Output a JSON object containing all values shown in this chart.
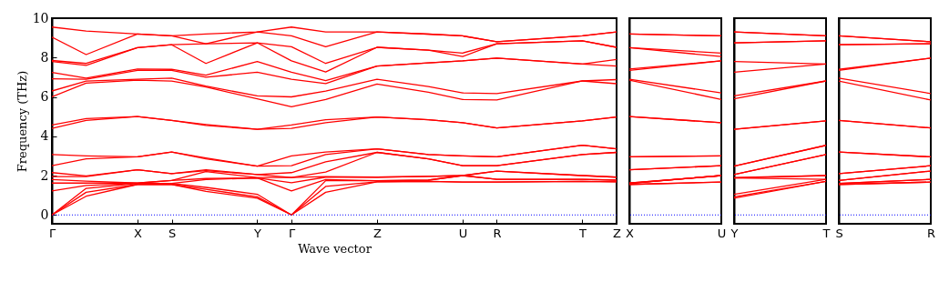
{
  "chart_data": [
    {
      "type": "line",
      "xlabel": "Wave vector",
      "ylabel": "Frequency (THz)",
      "categories": [
        "Γ",
        null,
        null,
        null,
        null,
        "X",
        null,
        "S",
        null,
        null,
        null,
        null,
        "Y",
        null,
        "Γ",
        null,
        null,
        null,
        null,
        "Z",
        null,
        null,
        null,
        null,
        "U",
        null,
        "R",
        null,
        null,
        null,
        null,
        "T",
        null,
        "Z"
      ],
      "ylim": [
        -0.45,
        10
      ],
      "yticks": [
        0,
        2,
        4,
        6,
        8,
        10
      ],
      "ref_lines": [
        {
          "axis": "y",
          "value": 0,
          "color": "#0000ff",
          "line_style": "dotted"
        }
      ],
      "series": [
        {
          "color": "#ff0000",
          "values": [
            0,
            null,
            0.95,
            null,
            null,
            1.55,
            null,
            1.55,
            null,
            1.2,
            null,
            null,
            0.85,
            null,
            0,
            null,
            1.15,
            null,
            null,
            1.68,
            null,
            null,
            1.71,
            null,
            1.67,
            null,
            1.67,
            null,
            null,
            null,
            null,
            1.71,
            null,
            1.68
          ]
        },
        {
          "color": "#ff0000",
          "values": [
            0,
            null,
            1.15,
            null,
            null,
            1.55,
            null,
            1.55,
            null,
            1.3,
            null,
            null,
            0.92,
            null,
            0,
            null,
            1.45,
            null,
            null,
            1.68,
            null,
            null,
            1.71,
            null,
            1.67,
            null,
            1.67,
            null,
            null,
            null,
            null,
            1.71,
            null,
            1.68
          ]
        },
        {
          "color": "#ff0000",
          "values": [
            0,
            null,
            1.35,
            null,
            null,
            1.6,
            null,
            1.6,
            null,
            1.4,
            null,
            null,
            1.05,
            null,
            0,
            null,
            1.74,
            null,
            null,
            1.74,
            null,
            null,
            1.77,
            null,
            2.0,
            null,
            1.81,
            null,
            null,
            null,
            null,
            1.81,
            null,
            1.77
          ]
        },
        {
          "color": "#ff0000",
          "values": [
            1.22,
            null,
            1.5,
            null,
            null,
            1.6,
            null,
            1.6,
            null,
            1.8,
            null,
            null,
            1.88,
            null,
            1.22,
            null,
            1.8,
            null,
            null,
            1.74,
            null,
            null,
            1.77,
            null,
            2.0,
            null,
            1.81,
            null,
            null,
            null,
            null,
            1.81,
            null,
            1.77
          ]
        },
        {
          "color": "#ff0000",
          "values": [
            1.62,
            null,
            1.62,
            null,
            null,
            1.62,
            null,
            1.75,
            null,
            1.85,
            null,
            null,
            1.88,
            null,
            1.64,
            null,
            1.92,
            null,
            null,
            1.92,
            null,
            null,
            1.96,
            null,
            2.0,
            null,
            2.23,
            null,
            null,
            null,
            null,
            2.0,
            null,
            1.92
          ]
        },
        {
          "color": "#ff0000",
          "values": [
            1.8,
            null,
            1.72,
            null,
            null,
            1.62,
            null,
            1.75,
            null,
            2.2,
            null,
            null,
            1.9,
            null,
            1.9,
            null,
            1.95,
            null,
            null,
            1.92,
            null,
            null,
            1.96,
            null,
            2.0,
            null,
            2.23,
            null,
            null,
            null,
            null,
            2.0,
            null,
            1.92
          ]
        },
        {
          "color": "#ff0000",
          "values": [
            1.95,
            null,
            1.95,
            null,
            null,
            2.3,
            null,
            2.1,
            null,
            2.25,
            null,
            null,
            2.05,
            null,
            1.9,
            null,
            2.18,
            null,
            null,
            3.18,
            null,
            null,
            2.85,
            null,
            2.5,
            null,
            2.5,
            null,
            null,
            null,
            null,
            3.07,
            null,
            3.18
          ]
        },
        {
          "color": "#ff0000",
          "values": [
            2.15,
            null,
            1.98,
            null,
            null,
            2.3,
            null,
            2.1,
            null,
            2.3,
            null,
            null,
            2.05,
            null,
            2.15,
            null,
            2.7,
            null,
            null,
            3.18,
            null,
            null,
            2.85,
            null,
            2.5,
            null,
            2.5,
            null,
            null,
            null,
            null,
            3.07,
            null,
            3.18
          ]
        },
        {
          "color": "#ff0000",
          "values": [
            2.5,
            null,
            2.85,
            null,
            null,
            2.95,
            null,
            3.2,
            null,
            2.85,
            null,
            null,
            2.48,
            null,
            2.5,
            null,
            3.07,
            null,
            null,
            3.36,
            null,
            null,
            3.07,
            null,
            3.0,
            null,
            2.95,
            null,
            null,
            null,
            null,
            3.54,
            null,
            3.36
          ]
        },
        {
          "color": "#ff0000",
          "values": [
            3.07,
            null,
            3.0,
            null,
            null,
            2.95,
            null,
            3.2,
            null,
            2.9,
            null,
            null,
            2.48,
            null,
            3.0,
            null,
            3.2,
            null,
            null,
            3.36,
            null,
            null,
            3.07,
            null,
            3.0,
            null,
            2.95,
            null,
            null,
            null,
            null,
            3.54,
            null,
            3.36
          ]
        },
        {
          "color": "#ff0000",
          "values": [
            4.4,
            null,
            4.8,
            null,
            null,
            5.0,
            null,
            4.8,
            null,
            4.55,
            null,
            null,
            4.35,
            null,
            4.4,
            null,
            4.69,
            null,
            null,
            4.98,
            null,
            null,
            4.84,
            null,
            4.69,
            null,
            4.42,
            null,
            null,
            null,
            null,
            4.78,
            null,
            4.98
          ]
        },
        {
          "color": "#ff0000",
          "values": [
            4.57,
            null,
            4.9,
            null,
            null,
            5.0,
            null,
            4.8,
            null,
            4.6,
            null,
            null,
            4.35,
            null,
            4.57,
            null,
            4.84,
            null,
            null,
            4.98,
            null,
            null,
            4.84,
            null,
            4.69,
            null,
            4.42,
            null,
            null,
            null,
            null,
            4.78,
            null,
            4.98
          ]
        },
        {
          "color": "#ff0000",
          "values": [
            6.0,
            null,
            6.7,
            null,
            null,
            6.85,
            null,
            6.8,
            null,
            6.5,
            null,
            null,
            5.9,
            null,
            5.5,
            null,
            5.87,
            null,
            null,
            6.65,
            null,
            null,
            6.24,
            null,
            5.87,
            null,
            5.84,
            null,
            null,
            null,
            null,
            6.81,
            null,
            6.67
          ]
        },
        {
          "color": "#ff0000",
          "values": [
            6.3,
            null,
            6.8,
            null,
            null,
            6.9,
            null,
            6.95,
            null,
            6.55,
            null,
            null,
            6.05,
            null,
            6.0,
            null,
            6.3,
            null,
            null,
            6.9,
            null,
            null,
            6.53,
            null,
            6.2,
            null,
            6.17,
            null,
            null,
            null,
            null,
            6.81,
            null,
            6.88
          ]
        },
        {
          "color": "#ff0000",
          "values": [
            6.92,
            null,
            6.9,
            null,
            null,
            7.35,
            null,
            7.35,
            null,
            7.0,
            null,
            null,
            7.25,
            null,
            6.9,
            null,
            6.68,
            null,
            null,
            7.57,
            null,
            null,
            7.73,
            null,
            7.83,
            null,
            7.97,
            null,
            null,
            null,
            null,
            7.67,
            null,
            7.57
          ]
        },
        {
          "color": "#ff0000",
          "values": [
            7.24,
            null,
            6.95,
            null,
            null,
            7.42,
            null,
            7.4,
            null,
            7.1,
            null,
            null,
            7.8,
            null,
            7.25,
            null,
            6.83,
            null,
            null,
            7.57,
            null,
            null,
            7.73,
            null,
            7.83,
            null,
            7.97,
            null,
            null,
            null,
            null,
            7.67,
            null,
            7.9
          ]
        },
        {
          "color": "#ff0000",
          "values": [
            7.8,
            null,
            7.6,
            null,
            null,
            8.5,
            null,
            8.65,
            null,
            7.7,
            null,
            null,
            8.75,
            null,
            7.83,
            null,
            7.27,
            null,
            null,
            8.52,
            null,
            null,
            8.38,
            null,
            8.05,
            null,
            8.7,
            null,
            null,
            null,
            null,
            8.85,
            null,
            8.52
          ]
        },
        {
          "color": "#ff0000",
          "values": [
            7.85,
            null,
            7.7,
            null,
            null,
            8.5,
            null,
            8.65,
            null,
            8.7,
            null,
            null,
            8.75,
            null,
            8.55,
            null,
            7.7,
            null,
            null,
            8.52,
            null,
            null,
            8.38,
            null,
            8.23,
            null,
            8.7,
            null,
            null,
            null,
            null,
            8.85,
            null,
            8.52
          ]
        },
        {
          "color": "#ff0000",
          "values": [
            9.04,
            null,
            8.15,
            null,
            null,
            9.2,
            null,
            9.1,
            null,
            8.7,
            null,
            null,
            9.3,
            null,
            9.1,
            null,
            8.55,
            null,
            null,
            9.3,
            null,
            null,
            9.19,
            null,
            9.1,
            null,
            8.8,
            null,
            null,
            null,
            null,
            9.1,
            null,
            9.3
          ]
        },
        {
          "color": "#ff0000",
          "values": [
            9.55,
            null,
            9.35,
            null,
            null,
            9.2,
            null,
            9.1,
            null,
            9.2,
            null,
            null,
            9.3,
            null,
            9.55,
            null,
            9.3,
            null,
            null,
            9.3,
            null,
            null,
            9.19,
            null,
            9.1,
            null,
            8.8,
            null,
            null,
            null,
            null,
            9.1,
            null,
            9.3
          ]
        }
      ]
    },
    {
      "type": "line",
      "categories": [
        "X",
        "U"
      ],
      "ylim": [
        -0.45,
        10
      ],
      "yticks": [
        0,
        2,
        4,
        6,
        8,
        10
      ],
      "tick_labels": "x",
      "ref_lines": [
        {
          "axis": "y",
          "value": 0,
          "color": "#0000ff",
          "line_style": "dotted"
        }
      ],
      "series": [
        {
          "color": "#ff0000",
          "values": [
            1.55,
            1.67
          ]
        },
        {
          "color": "#ff0000",
          "values": [
            1.55,
            1.67
          ]
        },
        {
          "color": "#ff0000",
          "values": [
            1.6,
            2.0
          ]
        },
        {
          "color": "#ff0000",
          "values": [
            1.6,
            2.0
          ]
        },
        {
          "color": "#ff0000",
          "values": [
            1.62,
            2.0
          ]
        },
        {
          "color": "#ff0000",
          "values": [
            1.62,
            2.0
          ]
        },
        {
          "color": "#ff0000",
          "values": [
            2.3,
            2.5
          ]
        },
        {
          "color": "#ff0000",
          "values": [
            2.3,
            2.5
          ]
        },
        {
          "color": "#ff0000",
          "values": [
            2.95,
            3.0
          ]
        },
        {
          "color": "#ff0000",
          "values": [
            2.95,
            3.0
          ]
        },
        {
          "color": "#ff0000",
          "values": [
            5.0,
            4.69
          ]
        },
        {
          "color": "#ff0000",
          "values": [
            5.0,
            4.69
          ]
        },
        {
          "color": "#ff0000",
          "values": [
            6.85,
            5.87
          ]
        },
        {
          "color": "#ff0000",
          "values": [
            6.9,
            6.2
          ]
        },
        {
          "color": "#ff0000",
          "values": [
            7.35,
            7.83
          ]
        },
        {
          "color": "#ff0000",
          "values": [
            7.42,
            7.83
          ]
        },
        {
          "color": "#ff0000",
          "values": [
            8.5,
            8.05
          ]
        },
        {
          "color": "#ff0000",
          "values": [
            8.5,
            8.23
          ]
        },
        {
          "color": "#ff0000",
          "values": [
            9.2,
            9.1
          ]
        },
        {
          "color": "#ff0000",
          "values": [
            9.2,
            9.1
          ]
        }
      ]
    },
    {
      "type": "line",
      "categories": [
        "Y",
        "T"
      ],
      "ylim": [
        -0.45,
        10
      ],
      "yticks": [
        0,
        2,
        4,
        6,
        8,
        10
      ],
      "tick_labels": "x",
      "ref_lines": [
        {
          "axis": "y",
          "value": 0,
          "color": "#0000ff",
          "line_style": "dotted"
        }
      ],
      "series": [
        {
          "color": "#ff0000",
          "values": [
            0.85,
            1.71
          ]
        },
        {
          "color": "#ff0000",
          "values": [
            0.92,
            1.71
          ]
        },
        {
          "color": "#ff0000",
          "values": [
            1.05,
            1.81
          ]
        },
        {
          "color": "#ff0000",
          "values": [
            1.88,
            1.81
          ]
        },
        {
          "color": "#ff0000",
          "values": [
            1.88,
            2.0
          ]
        },
        {
          "color": "#ff0000",
          "values": [
            1.9,
            2.0
          ]
        },
        {
          "color": "#ff0000",
          "values": [
            2.05,
            3.07
          ]
        },
        {
          "color": "#ff0000",
          "values": [
            2.05,
            3.07
          ]
        },
        {
          "color": "#ff0000",
          "values": [
            2.48,
            3.54
          ]
        },
        {
          "color": "#ff0000",
          "values": [
            2.48,
            3.54
          ]
        },
        {
          "color": "#ff0000",
          "values": [
            4.35,
            4.78
          ]
        },
        {
          "color": "#ff0000",
          "values": [
            4.35,
            4.78
          ]
        },
        {
          "color": "#ff0000",
          "values": [
            5.9,
            6.81
          ]
        },
        {
          "color": "#ff0000",
          "values": [
            6.05,
            6.81
          ]
        },
        {
          "color": "#ff0000",
          "values": [
            7.25,
            7.67
          ]
        },
        {
          "color": "#ff0000",
          "values": [
            7.8,
            7.67
          ]
        },
        {
          "color": "#ff0000",
          "values": [
            8.75,
            8.85
          ]
        },
        {
          "color": "#ff0000",
          "values": [
            8.75,
            8.85
          ]
        },
        {
          "color": "#ff0000",
          "values": [
            9.3,
            9.1
          ]
        },
        {
          "color": "#ff0000",
          "values": [
            9.3,
            9.1
          ]
        }
      ]
    },
    {
      "type": "line",
      "categories": [
        "S",
        "R"
      ],
      "ylim": [
        -0.45,
        10
      ],
      "yticks": [
        0,
        2,
        4,
        6,
        8,
        10
      ],
      "tick_labels": "x",
      "ref_lines": [
        {
          "axis": "y",
          "value": 0,
          "color": "#0000ff",
          "line_style": "dotted"
        }
      ],
      "series": [
        {
          "color": "#ff0000",
          "values": [
            1.55,
            1.67
          ]
        },
        {
          "color": "#ff0000",
          "values": [
            1.55,
            1.67
          ]
        },
        {
          "color": "#ff0000",
          "values": [
            1.6,
            1.81
          ]
        },
        {
          "color": "#ff0000",
          "values": [
            1.6,
            1.81
          ]
        },
        {
          "color": "#ff0000",
          "values": [
            1.75,
            2.23
          ]
        },
        {
          "color": "#ff0000",
          "values": [
            1.75,
            2.23
          ]
        },
        {
          "color": "#ff0000",
          "values": [
            2.1,
            2.5
          ]
        },
        {
          "color": "#ff0000",
          "values": [
            2.1,
            2.5
          ]
        },
        {
          "color": "#ff0000",
          "values": [
            3.2,
            2.95
          ]
        },
        {
          "color": "#ff0000",
          "values": [
            3.2,
            2.95
          ]
        },
        {
          "color": "#ff0000",
          "values": [
            4.8,
            4.42
          ]
        },
        {
          "color": "#ff0000",
          "values": [
            4.8,
            4.42
          ]
        },
        {
          "color": "#ff0000",
          "values": [
            6.8,
            5.84
          ]
        },
        {
          "color": "#ff0000",
          "values": [
            6.95,
            6.17
          ]
        },
        {
          "color": "#ff0000",
          "values": [
            7.35,
            7.97
          ]
        },
        {
          "color": "#ff0000",
          "values": [
            7.4,
            7.97
          ]
        },
        {
          "color": "#ff0000",
          "values": [
            8.65,
            8.7
          ]
        },
        {
          "color": "#ff0000",
          "values": [
            8.65,
            8.7
          ]
        },
        {
          "color": "#ff0000",
          "values": [
            9.1,
            8.8
          ]
        },
        {
          "color": "#ff0000",
          "values": [
            9.1,
            8.8
          ]
        }
      ]
    }
  ]
}
